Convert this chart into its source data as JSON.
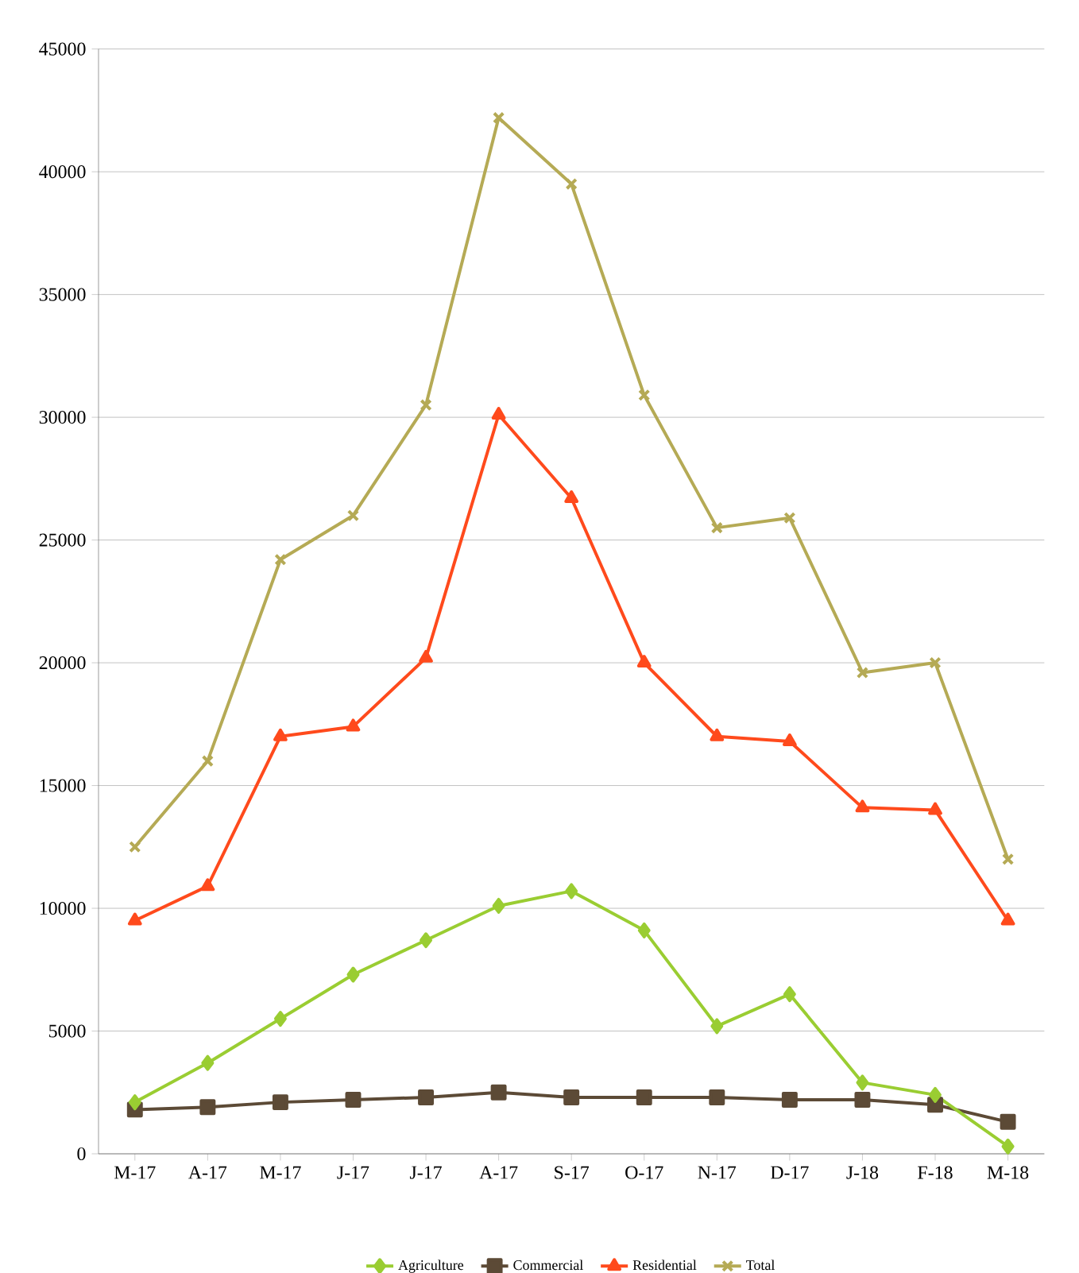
{
  "chart_data": {
    "type": "line",
    "categories": [
      "M-17",
      "A-17",
      "M-17",
      "J-17",
      "J-17",
      "A-17",
      "S-17",
      "O-17",
      "N-17",
      "D-17",
      "J-18",
      "F-18",
      "M-18"
    ],
    "series": [
      {
        "name": "Agriculture",
        "color": "#9acd32",
        "marker": "diamond",
        "values": [
          2100,
          3700,
          5500,
          7300,
          8700,
          10100,
          10700,
          9100,
          5200,
          6500,
          2900,
          2400,
          300
        ]
      },
      {
        "name": "Commercial",
        "color": "#5c4a36",
        "marker": "square",
        "values": [
          1800,
          1900,
          2100,
          2200,
          2300,
          2500,
          2300,
          2300,
          2300,
          2200,
          2200,
          2000,
          1300
        ]
      },
      {
        "name": "Residential",
        "color": "#ff4a1c",
        "marker": "triangle",
        "values": [
          9500,
          10900,
          17000,
          17400,
          20200,
          30100,
          26700,
          20000,
          17000,
          16800,
          14100,
          14000,
          9500
        ]
      },
      {
        "name": "Total",
        "color": "#b5aa55",
        "marker": "cross",
        "values": [
          12500,
          16000,
          24200,
          26000,
          30500,
          42200,
          39500,
          30900,
          25500,
          25900,
          19600,
          20000,
          12000
        ]
      }
    ],
    "ylim": [
      0,
      45000
    ],
    "yticks": [
      0,
      5000,
      10000,
      15000,
      20000,
      25000,
      30000,
      35000,
      40000,
      45000
    ],
    "grid": "y",
    "legend": "bottom",
    "line_style": "solid"
  }
}
